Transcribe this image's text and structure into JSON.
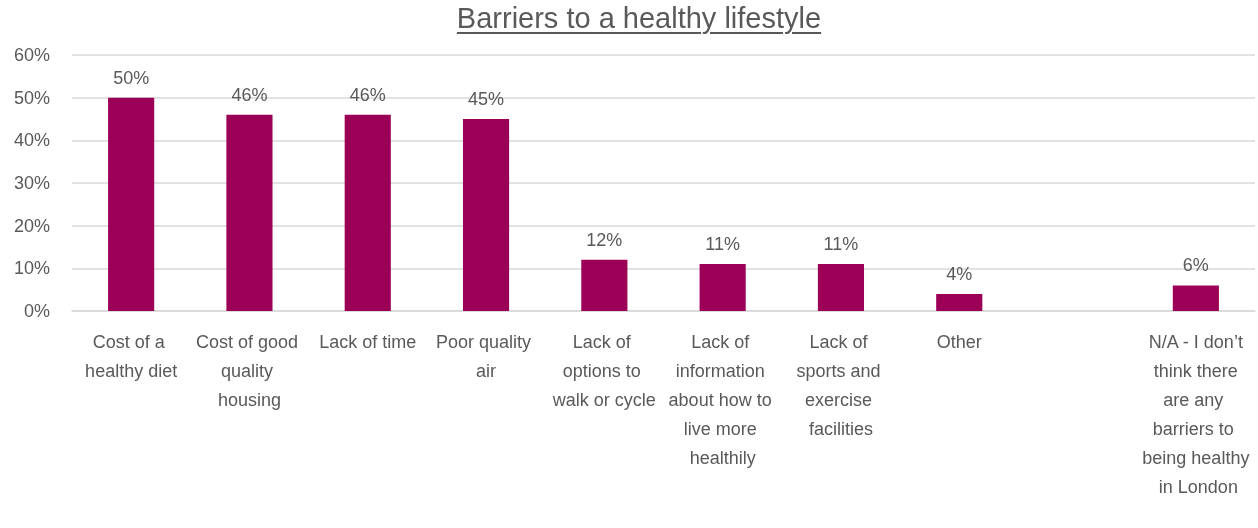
{
  "chart_data": {
    "type": "bar",
    "title": "Barriers to a healthy lifestyle",
    "categories": [
      "Cost of a healthy diet",
      "Cost of good quality housing",
      "Lack of time",
      "Poor quality air",
      "Lack of options to walk or cycle",
      "Lack of information about how to live more healthily",
      "Lack of sports and exercise facilities",
      "Other",
      null,
      "N/A - I don’t think there are any barriers to being healthy in London"
    ],
    "values": [
      50,
      46,
      46,
      45,
      12,
      11,
      11,
      4,
      null,
      6
    ],
    "value_labels": [
      "50%",
      "46%",
      "46%",
      "45%",
      "12%",
      "11%",
      "11%",
      "4%",
      null,
      "6%"
    ],
    "color": "#9b0056",
    "ylim": [
      0,
      60
    ],
    "yticks": [
      {
        "value": 0,
        "label": "0%"
      },
      {
        "value": 10,
        "label": "10%"
      },
      {
        "value": 20,
        "label": "20%"
      },
      {
        "value": 30,
        "label": "30%"
      },
      {
        "value": 40,
        "label": "40%"
      },
      {
        "value": 50,
        "label": "50%"
      },
      {
        "value": 60,
        "label": "60%"
      }
    ],
    "grid": "y"
  }
}
